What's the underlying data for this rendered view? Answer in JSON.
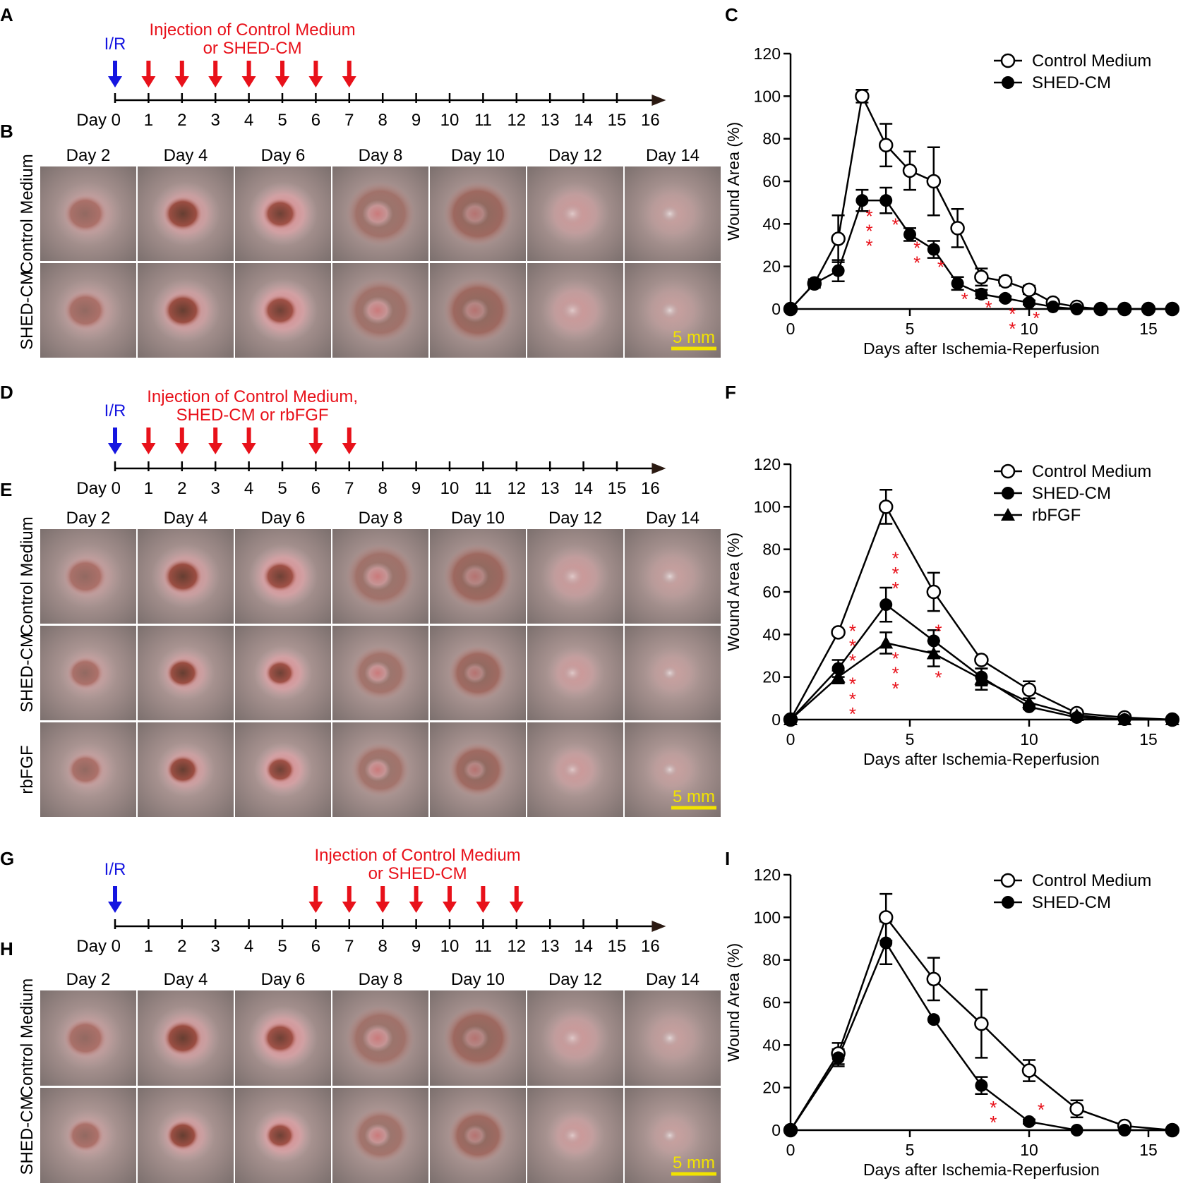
{
  "panel_labels": {
    "A": "A",
    "B": "B",
    "C": "C",
    "D": "D",
    "E": "E",
    "F": "F",
    "G": "G",
    "H": "H",
    "I": "I"
  },
  "colors": {
    "ir": "#1515e0",
    "injection": "#e8111a",
    "axis": "#000000",
    "star": "#e8111a",
    "scale_bar": "#f2e300"
  },
  "timelines": [
    {
      "id": "A",
      "ir_label": "I/R",
      "injection_label": [
        "Injection of Control Medium",
        "or SHED-CM"
      ],
      "injection_days": [
        1,
        2,
        3,
        4,
        5,
        6,
        7
      ],
      "day_prefix": "Day",
      "ticks": [
        0,
        1,
        2,
        3,
        4,
        5,
        6,
        7,
        8,
        9,
        10,
        11,
        12,
        13,
        14,
        15,
        16
      ]
    },
    {
      "id": "D",
      "ir_label": "I/R",
      "injection_label": [
        "Injection of Control Medium,",
        "SHED-CM or rbFGF"
      ],
      "injection_days": [
        1,
        2,
        3,
        4,
        6,
        7
      ],
      "day_prefix": "Day",
      "ticks": [
        0,
        1,
        2,
        3,
        4,
        5,
        6,
        7,
        8,
        9,
        10,
        11,
        12,
        13,
        14,
        15,
        16
      ]
    },
    {
      "id": "G",
      "ir_label": "I/R",
      "injection_label": [
        "Injection of Control Medium",
        "or SHED-CM"
      ],
      "injection_days": [
        6,
        7,
        8,
        9,
        10,
        11,
        12
      ],
      "day_prefix": "Day",
      "ticks": [
        0,
        1,
        2,
        3,
        4,
        5,
        6,
        7,
        8,
        9,
        10,
        11,
        12,
        13,
        14,
        15,
        16
      ]
    }
  ],
  "photo_panels": [
    {
      "id": "B",
      "columns": [
        "Day 2",
        "Day 4",
        "Day 6",
        "Day 8",
        "Day 10",
        "Day 12",
        "Day 14"
      ],
      "rows": [
        "Control Medium",
        "SHED-CM"
      ],
      "scale_bar": "5 mm"
    },
    {
      "id": "E",
      "columns": [
        "Day 2",
        "Day 4",
        "Day 6",
        "Day 8",
        "Day 10",
        "Day 12",
        "Day 14"
      ],
      "rows": [
        "Control Medium",
        "SHED-CM",
        "rbFGF"
      ],
      "scale_bar": "5 mm"
    },
    {
      "id": "H",
      "columns": [
        "Day 2",
        "Day 4",
        "Day 6",
        "Day 8",
        "Day 10",
        "Day 12",
        "Day 14"
      ],
      "rows": [
        "Control Medium",
        "SHED-CM"
      ],
      "scale_bar": "5 mm"
    }
  ],
  "chart_data": [
    {
      "id": "C",
      "type": "line",
      "xlabel": "Days after Ischemia-Reperfusion",
      "ylabel": "Wound Area (%)",
      "xlim": [
        0,
        16
      ],
      "ylim": [
        0,
        120
      ],
      "xticks": [
        0,
        5,
        10,
        15
      ],
      "yticks": [
        0,
        20,
        40,
        60,
        80,
        100,
        120
      ],
      "series": [
        {
          "name": "Control Medium",
          "marker": "open-circle",
          "x": [
            0,
            1,
            2,
            3,
            4,
            5,
            6,
            7,
            8,
            9,
            10,
            11,
            12,
            13,
            14,
            15,
            16
          ],
          "y": [
            0,
            12,
            33,
            100,
            77,
            65,
            60,
            38,
            15,
            13,
            9,
            3,
            1,
            0,
            0,
            0,
            0
          ],
          "err": [
            0,
            0,
            11,
            3,
            10,
            9,
            16,
            9,
            4,
            2,
            2,
            1,
            0,
            0,
            0,
            0,
            0
          ]
        },
        {
          "name": "SHED-CM",
          "marker": "filled-circle",
          "x": [
            0,
            1,
            2,
            3,
            4,
            5,
            6,
            7,
            8,
            9,
            10,
            11,
            12,
            13,
            14,
            15,
            16
          ],
          "y": [
            0,
            12,
            18,
            51,
            51,
            35,
            28,
            12,
            7,
            5,
            3,
            1,
            0,
            0,
            0,
            0,
            0
          ],
          "err": [
            0,
            2,
            5,
            5,
            6,
            3,
            4,
            3,
            2,
            1,
            1,
            0,
            0,
            0,
            0,
            0,
            0
          ]
        }
      ],
      "annotations": [
        {
          "x": 3.3,
          "y": 44,
          "text": "*"
        },
        {
          "x": 3.3,
          "y": 37,
          "text": "*"
        },
        {
          "x": 3.3,
          "y": 30,
          "text": "*"
        },
        {
          "x": 4.4,
          "y": 40,
          "text": "*"
        },
        {
          "x": 5.3,
          "y": 29,
          "text": "*"
        },
        {
          "x": 5.3,
          "y": 22,
          "text": "*"
        },
        {
          "x": 6.3,
          "y": 20,
          "text": "*"
        },
        {
          "x": 7.3,
          "y": 5,
          "text": "*"
        },
        {
          "x": 8.3,
          "y": 1,
          "text": "*"
        },
        {
          "x": 9.3,
          "y": -2,
          "text": "*"
        },
        {
          "x": 9.3,
          "y": -9,
          "text": "*"
        },
        {
          "x": 10.3,
          "y": -4,
          "text": "*"
        }
      ]
    },
    {
      "id": "F",
      "type": "line",
      "xlabel": "Days after Ischemia-Reperfusion",
      "ylabel": "Wound Area (%)",
      "xlim": [
        0,
        16
      ],
      "ylim": [
        0,
        120
      ],
      "xticks": [
        0,
        5,
        10,
        15
      ],
      "yticks": [
        0,
        20,
        40,
        60,
        80,
        100,
        120
      ],
      "series": [
        {
          "name": "Control Medium",
          "marker": "open-circle",
          "x": [
            0,
            2,
            4,
            6,
            8,
            10,
            12,
            14,
            16
          ],
          "y": [
            0,
            41,
            100,
            60,
            28,
            14,
            3,
            1,
            0
          ],
          "err": [
            0,
            0,
            8,
            9,
            0,
            4,
            0,
            0,
            0
          ]
        },
        {
          "name": "SHED-CM",
          "marker": "filled-circle",
          "x": [
            0,
            2,
            4,
            6,
            8,
            10,
            12,
            14,
            16
          ],
          "y": [
            0,
            24,
            54,
            37,
            20,
            6,
            1,
            0,
            0
          ],
          "err": [
            0,
            4,
            8,
            5,
            4,
            1,
            0,
            0,
            0
          ]
        },
        {
          "name": "rbFGF",
          "marker": "filled-triangle",
          "x": [
            0,
            2,
            4,
            6,
            8,
            10,
            12,
            14,
            16
          ],
          "y": [
            0,
            20,
            36,
            31,
            19,
            8,
            2,
            0,
            0
          ],
          "err": [
            0,
            3,
            5,
            6,
            5,
            2,
            0,
            0,
            0
          ]
        }
      ],
      "annotations": [
        {
          "x": 2.6,
          "y": 42,
          "text": "*"
        },
        {
          "x": 2.6,
          "y": 35,
          "text": "*"
        },
        {
          "x": 2.6,
          "y": 28,
          "text": "*"
        },
        {
          "x": 2.6,
          "y": 17,
          "text": "*"
        },
        {
          "x": 2.6,
          "y": 10,
          "text": "*"
        },
        {
          "x": 2.6,
          "y": 3,
          "text": "*"
        },
        {
          "x": 4.4,
          "y": 76,
          "text": "*"
        },
        {
          "x": 4.4,
          "y": 69,
          "text": "*"
        },
        {
          "x": 4.4,
          "y": 62,
          "text": "*"
        },
        {
          "x": 4.4,
          "y": 29,
          "text": "*"
        },
        {
          "x": 4.4,
          "y": 22,
          "text": "*"
        },
        {
          "x": 4.4,
          "y": 15,
          "text": "*"
        },
        {
          "x": 6.2,
          "y": 42,
          "text": "*"
        },
        {
          "x": 6.2,
          "y": 20,
          "text": "*"
        }
      ]
    },
    {
      "id": "I",
      "type": "line",
      "xlabel": "Days after Ischemia-Reperfusion",
      "ylabel": "Wound Area (%)",
      "xlim": [
        0,
        16
      ],
      "ylim": [
        0,
        120
      ],
      "xticks": [
        0,
        5,
        10,
        15
      ],
      "yticks": [
        0,
        20,
        40,
        60,
        80,
        100,
        120
      ],
      "series": [
        {
          "name": "Control Medium",
          "marker": "open-circle",
          "x": [
            0,
            2,
            4,
            6,
            8,
            10,
            12,
            14,
            16
          ],
          "y": [
            0,
            36,
            100,
            71,
            50,
            28,
            10,
            2,
            0
          ],
          "err": [
            0,
            5,
            11,
            10,
            16,
            5,
            4,
            1,
            0
          ]
        },
        {
          "name": "SHED-CM",
          "marker": "filled-circle",
          "x": [
            0,
            2,
            4,
            6,
            8,
            10,
            12,
            14,
            16
          ],
          "y": [
            0,
            34,
            88,
            52,
            21,
            4,
            0,
            0,
            0
          ],
          "err": [
            0,
            4,
            10,
            0,
            4,
            1,
            0,
            0,
            0
          ]
        }
      ],
      "annotations": [
        {
          "x": 8.5,
          "y": 11,
          "text": "*"
        },
        {
          "x": 8.5,
          "y": 4,
          "text": "*"
        },
        {
          "x": 10.5,
          "y": 10,
          "text": "*"
        }
      ]
    }
  ]
}
